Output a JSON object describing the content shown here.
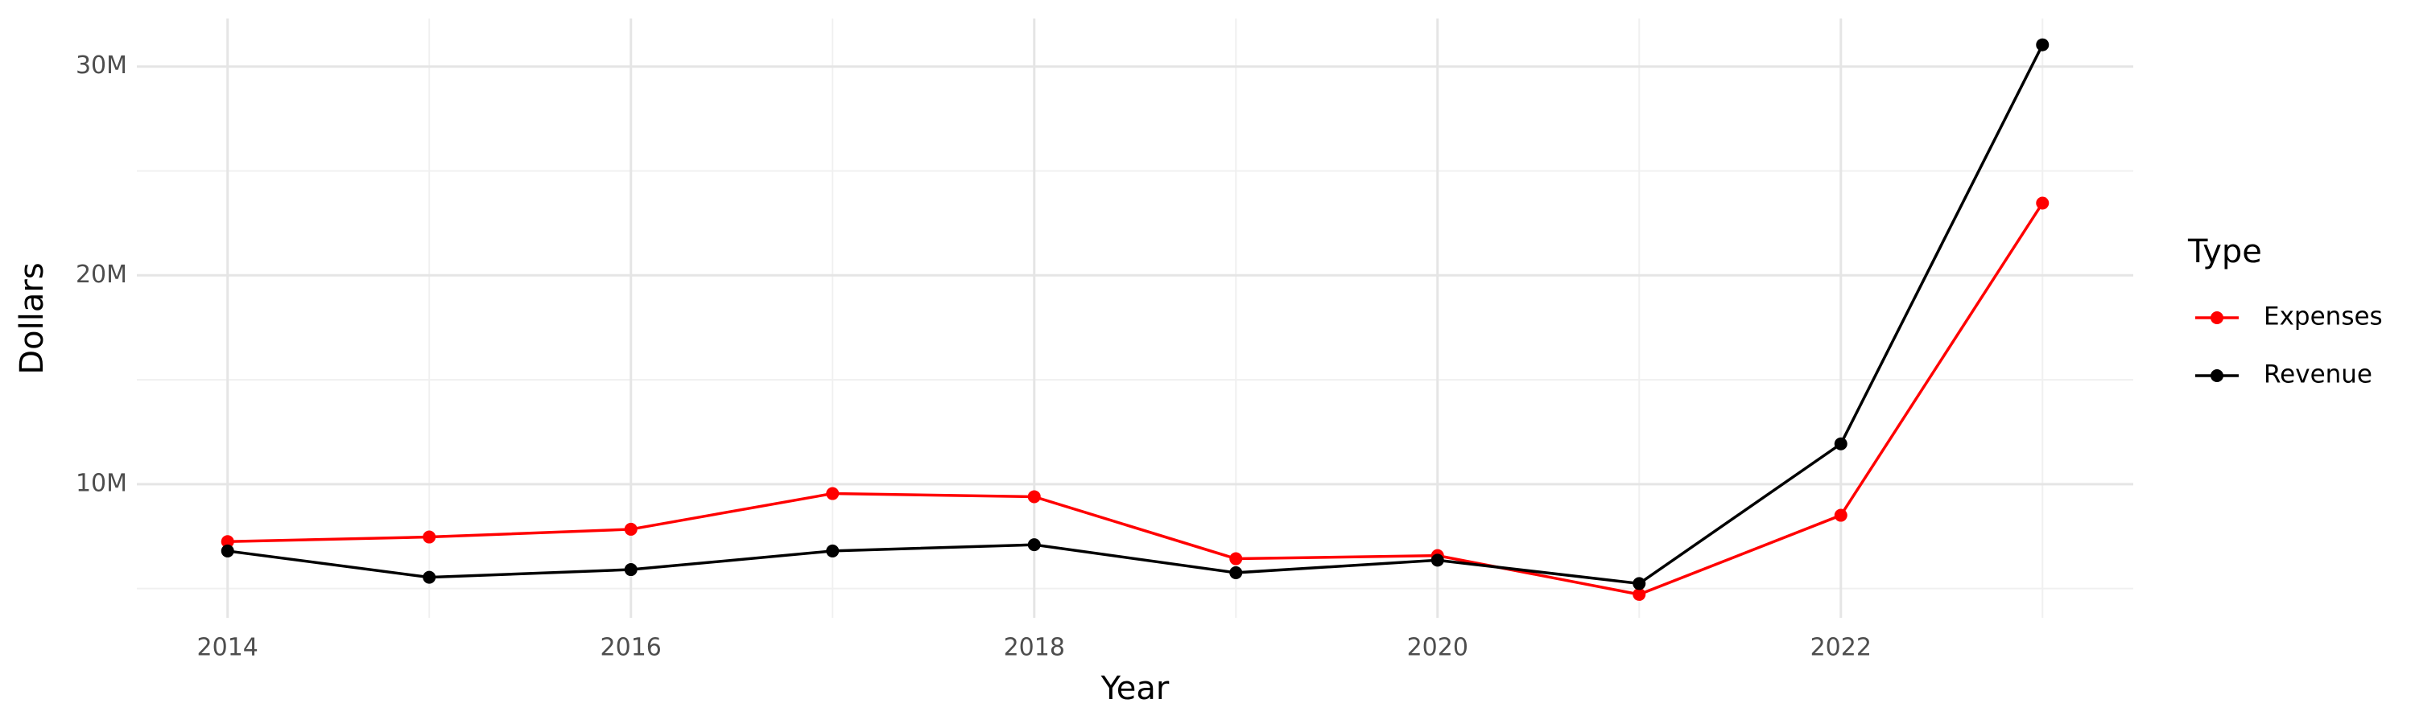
{
  "chart_data": {
    "type": "line",
    "x_label": "Year",
    "y_label": "Dollars",
    "legend_title": "Type",
    "legend": "right",
    "grid": true,
    "x": [
      2014,
      2015,
      2016,
      2017,
      2018,
      2019,
      2020,
      2021,
      2022,
      2023
    ],
    "series": [
      {
        "name": "Expenses",
        "color": "#ff0000",
        "values": [
          7250000,
          7470000,
          7840000,
          9550000,
          9400000,
          6430000,
          6580000,
          4720000,
          8510000,
          23460000
        ]
      },
      {
        "name": "Revenue",
        "color": "#000000",
        "values": [
          6800000,
          5540000,
          5910000,
          6800000,
          7100000,
          5760000,
          6360000,
          5240000,
          11930000,
          31040000
        ]
      }
    ],
    "xlim": [
      2013.55,
      2023.45
    ],
    "xticks": [
      2014,
      2016,
      2018,
      2020,
      2022
    ],
    "x_minor_ticks": [
      2015,
      2017,
      2019,
      2021,
      2023
    ],
    "ylim": [
      3600000,
      32300000
    ],
    "yticks": [
      {
        "value": 10000000,
        "label": "10M"
      },
      {
        "value": 20000000,
        "label": "20M"
      },
      {
        "value": 30000000,
        "label": "30M"
      }
    ],
    "y_minor_ticks": [
      5000000,
      15000000,
      25000000
    ]
  }
}
